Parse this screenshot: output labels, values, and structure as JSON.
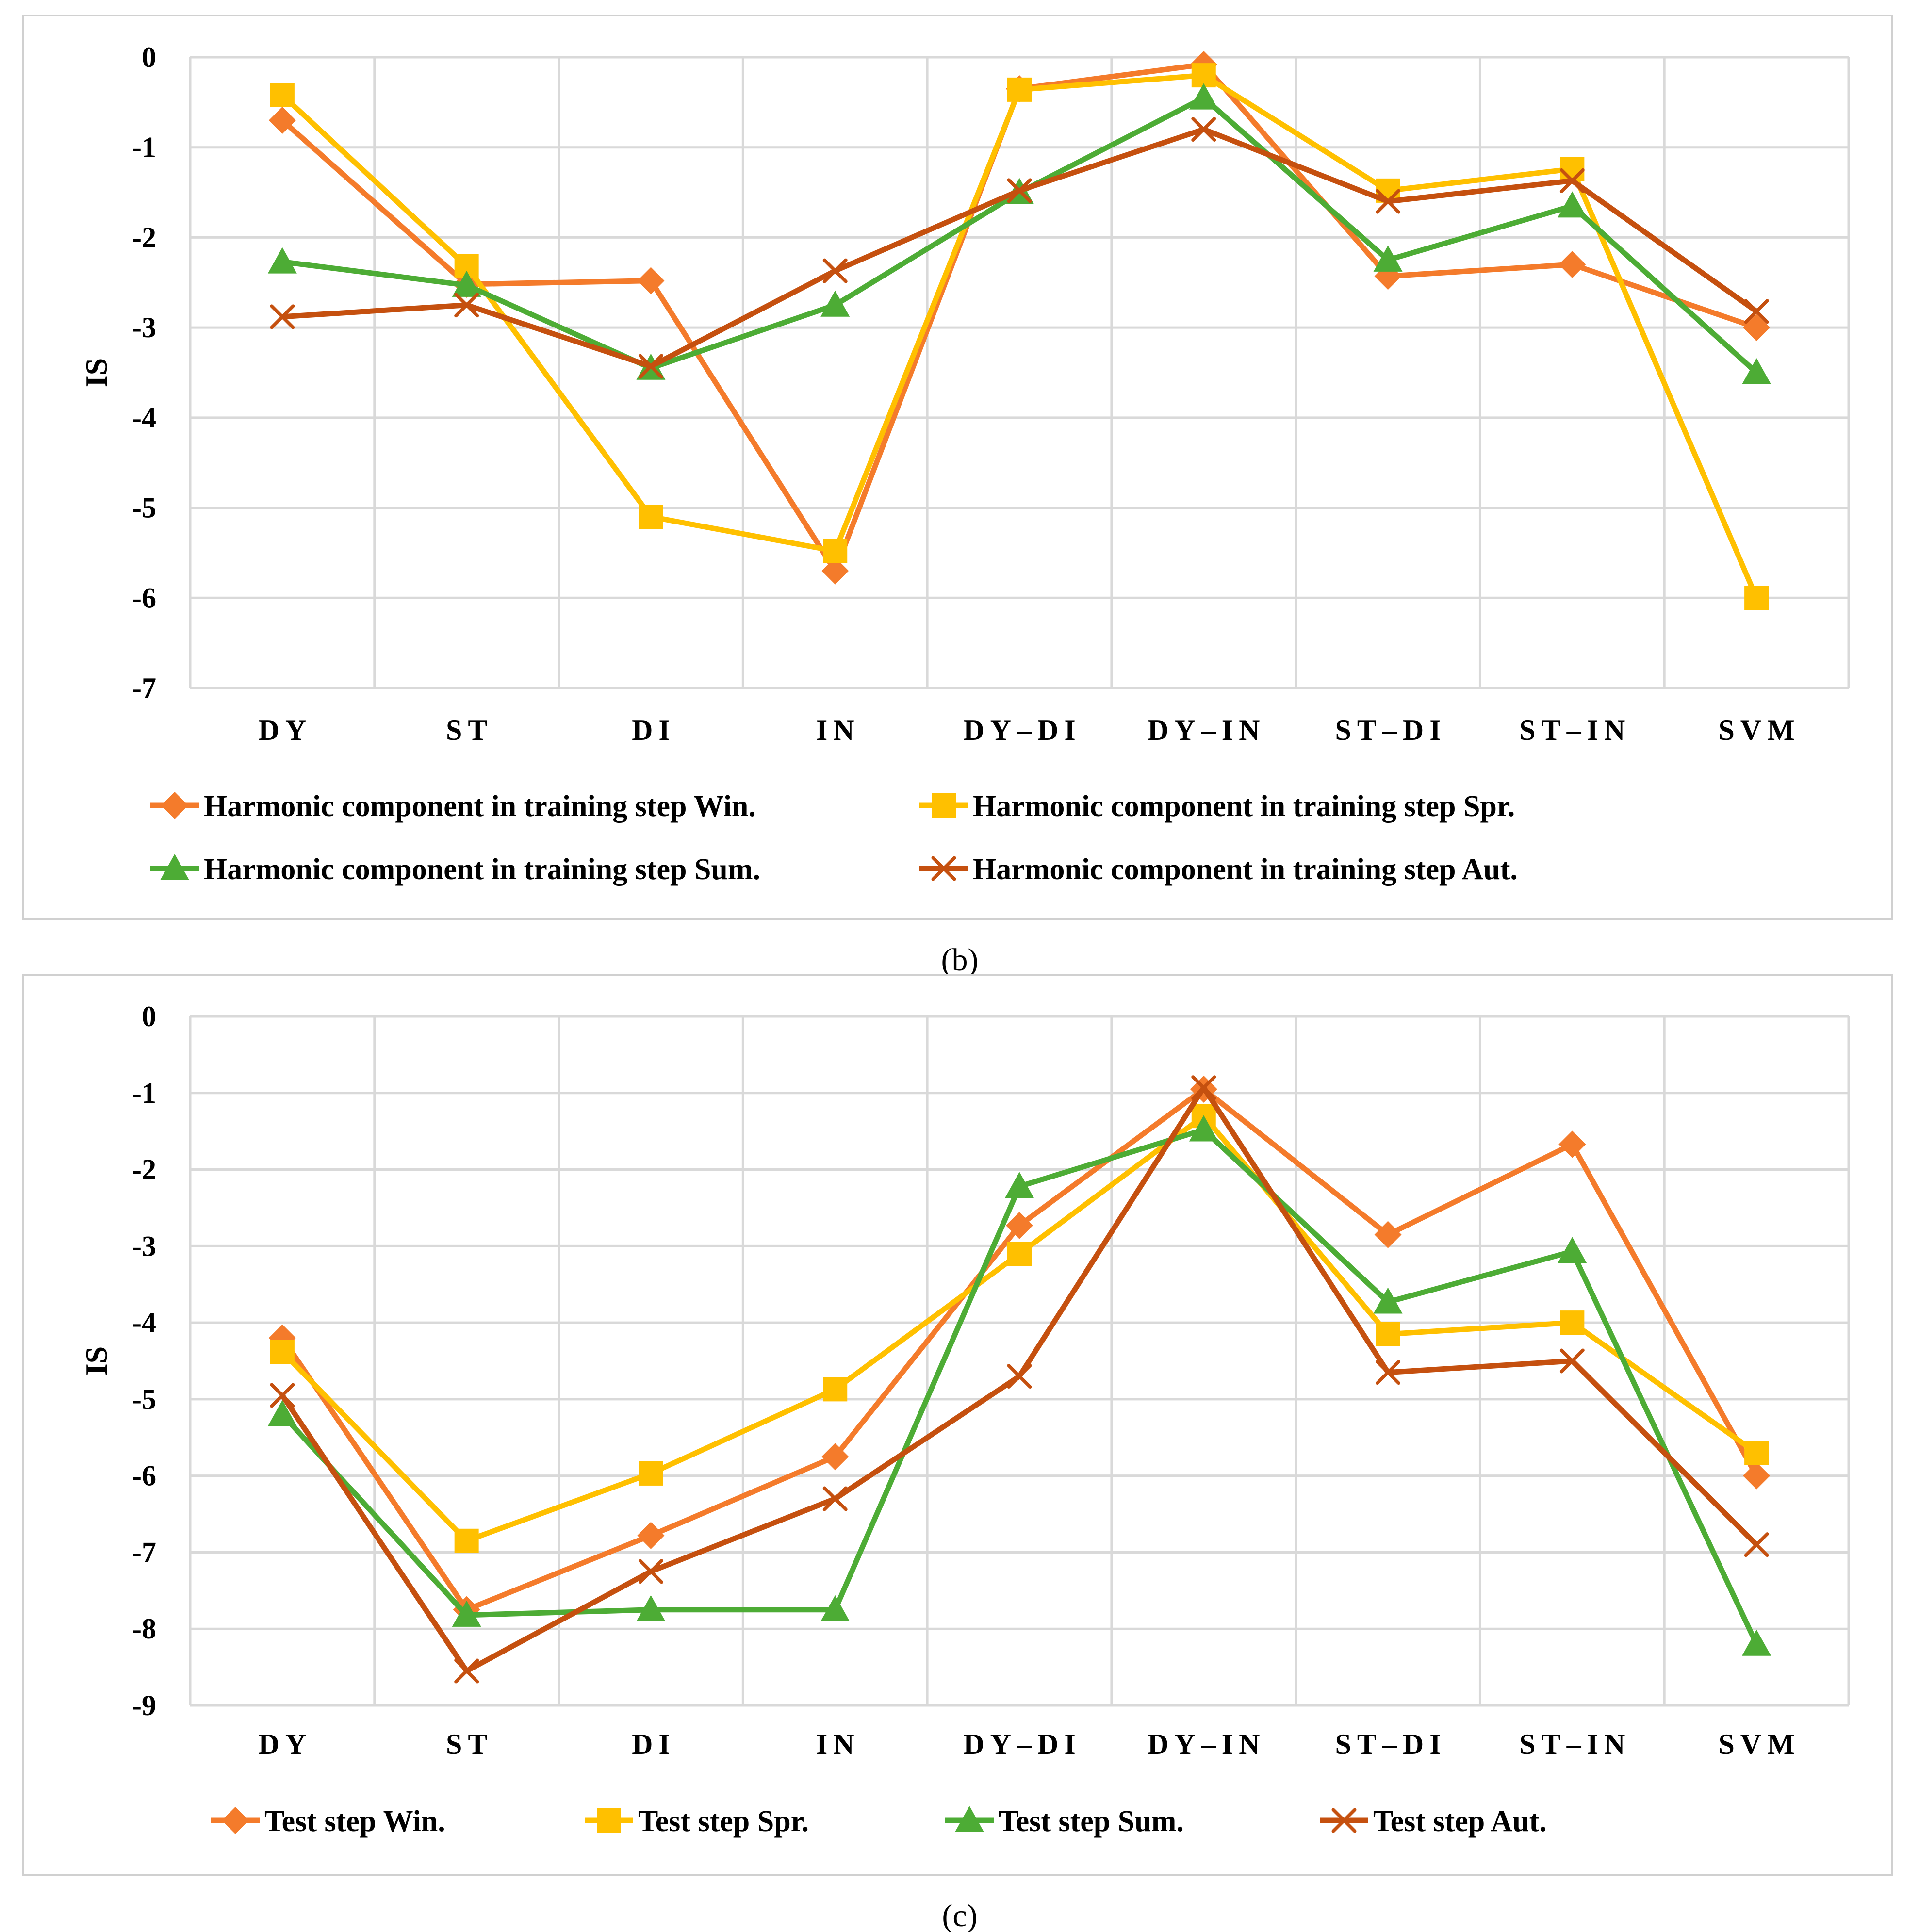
{
  "colors": {
    "Win": "#F47B2B",
    "Spr": "#FFC000",
    "Sum": "#4DAC35",
    "Aut": "#C5500F",
    "grid": "#D9D9D9",
    "frame": "#D0D0D0"
  },
  "chart_data": [
    {
      "id": "b",
      "type": "line",
      "caption": "(b)",
      "ylabel": "IS",
      "ylim": [
        -7,
        0
      ],
      "yticks": [
        "0",
        "-1",
        "-2",
        "-3",
        "-4",
        "-5",
        "-6",
        "-7"
      ],
      "categories": [
        "DY",
        "ST",
        "DI",
        "IN",
        "DY–DI",
        "DY–IN",
        "ST–DI",
        "ST–IN",
        "SVM"
      ],
      "legend_position": "bottom",
      "series": [
        {
          "key": "Win",
          "name": "Harmonic component in training step Win.",
          "marker": "diamond",
          "values": [
            -0.7,
            -2.52,
            -2.48,
            -5.7,
            -0.35,
            -0.08,
            -2.43,
            -2.3,
            -3.0
          ]
        },
        {
          "key": "Spr",
          "name": "Harmonic component in training step Spr.",
          "marker": "square",
          "values": [
            -0.42,
            -2.32,
            -5.1,
            -5.48,
            -0.36,
            -0.2,
            -1.48,
            -1.24,
            -6.0
          ]
        },
        {
          "key": "Sum",
          "name": "Harmonic component in training step Sum.",
          "marker": "triangle",
          "values": [
            -2.27,
            -2.53,
            -3.45,
            -2.75,
            -1.5,
            -0.45,
            -2.25,
            -1.65,
            -3.5
          ]
        },
        {
          "key": "Aut",
          "name": "Harmonic component in training step Aut.",
          "marker": "x",
          "values": [
            -2.88,
            -2.75,
            -3.43,
            -2.37,
            -1.48,
            -0.8,
            -1.6,
            -1.37,
            -2.82
          ]
        }
      ]
    },
    {
      "id": "c",
      "type": "line",
      "caption": "(c)",
      "ylabel": "IS",
      "ylim": [
        -9,
        0
      ],
      "yticks": [
        "0",
        "-1",
        "-2",
        "-3",
        "-4",
        "-5",
        "-6",
        "-7",
        "-8",
        "-9"
      ],
      "categories": [
        "DY",
        "ST",
        "DI",
        "IN",
        "DY–DI",
        "DY–IN",
        "ST–DI",
        "ST–IN",
        "SVM"
      ],
      "legend_position": "bottom",
      "series": [
        {
          "key": "Win",
          "name": "Test step Win.",
          "marker": "diamond",
          "values": [
            -4.2,
            -7.75,
            -6.78,
            -5.75,
            -2.73,
            -0.95,
            -2.85,
            -1.67,
            -6.0
          ]
        },
        {
          "key": "Spr",
          "name": "Test step Spr.",
          "marker": "square",
          "values": [
            -4.38,
            -6.85,
            -5.97,
            -4.87,
            -3.1,
            -1.3,
            -4.15,
            -4.0,
            -5.7
          ]
        },
        {
          "key": "Sum",
          "name": "Test step Sum.",
          "marker": "triangle",
          "values": [
            -5.2,
            -7.82,
            -7.75,
            -7.75,
            -2.22,
            -1.48,
            -3.73,
            -3.07,
            -8.2
          ]
        },
        {
          "key": "Aut",
          "name": "Test step Aut.",
          "marker": "x",
          "values": [
            -4.95,
            -8.55,
            -7.25,
            -6.3,
            -4.7,
            -0.93,
            -4.65,
            -4.5,
            -6.9
          ]
        }
      ]
    }
  ]
}
